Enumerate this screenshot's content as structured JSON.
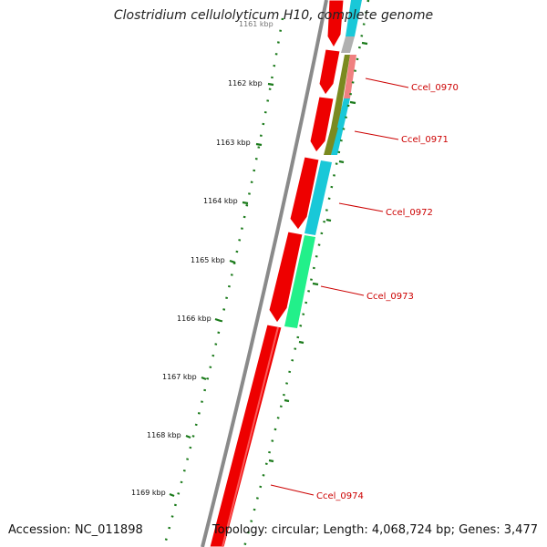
{
  "title": "Clostridium cellulolyticum H10, complete genome",
  "footer": {
    "accession": "Accession: NC_011898",
    "summary": "Topology: circular; Length: 4,068,724 bp; Genes: 3,477"
  },
  "ruler": {
    "top_partial_label": "1161 kbp",
    "ticks": [
      {
        "label": "1162 kbp"
      },
      {
        "label": "1163 kbp"
      },
      {
        "label": "1164 kbp"
      },
      {
        "label": "1165 kbp"
      },
      {
        "label": "1166 kbp"
      },
      {
        "label": "1167 kbp"
      },
      {
        "label": "1168 kbp"
      },
      {
        "label": "1169 kbp"
      }
    ]
  },
  "genes": [
    {
      "name": "Ccel_0970"
    },
    {
      "name": "Ccel_0971"
    },
    {
      "name": "Ccel_0972"
    },
    {
      "name": "Ccel_0973"
    },
    {
      "name": "Ccel_0974"
    }
  ],
  "colors": {
    "backbone": "#8a8a8a",
    "cds": "#ee0000",
    "cds_light": "#ff7070",
    "olive": "#7a8a20",
    "salmon": "#f08080",
    "cyan": "#19c8d8",
    "spring_green": "#22f08a",
    "ruler_ticks": "#1a7a1a",
    "label_red": "#cc0000"
  }
}
